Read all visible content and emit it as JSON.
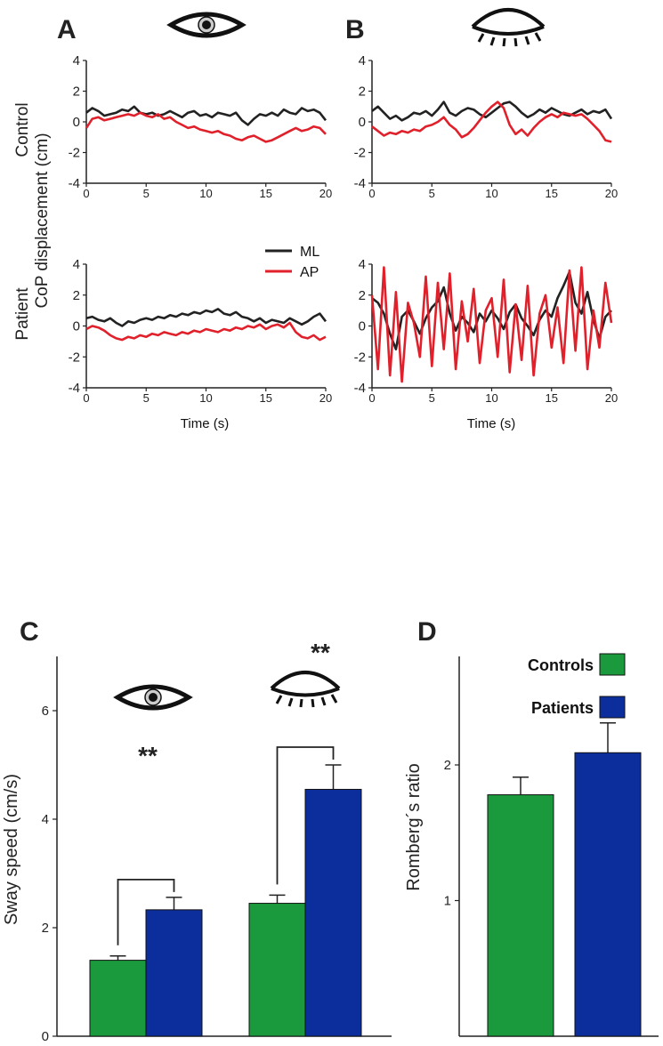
{
  "panels": {
    "a": "A",
    "b": "B",
    "c": "C",
    "d": "D"
  },
  "icons": {
    "open_eye": "eye-open-icon",
    "closed_eye": "eye-closed-icon"
  },
  "row_labels": {
    "control": "Control",
    "patient": "Patient"
  },
  "colors": {
    "ml": "#222222",
    "ap": "#e0212b",
    "controls": "#1a9a3c",
    "patients": "#0c2d9c"
  },
  "chart_data": [
    {
      "id": "A-control",
      "type": "line",
      "panel": "A",
      "condition": "eyes open",
      "group": "Control",
      "xlabel": "",
      "ylabel": "CoP displacement (cm)",
      "xlim": [
        0,
        20
      ],
      "ylim": [
        -4,
        4
      ],
      "xticks": [
        "0",
        "5",
        "10",
        "15",
        "20"
      ],
      "yticks": [
        "4",
        "2",
        "0",
        "-2",
        "-4"
      ],
      "series": [
        {
          "name": "ML",
          "x": [
            0,
            0.5,
            1,
            1.5,
            2,
            2.5,
            3,
            3.5,
            4,
            4.5,
            5,
            5.5,
            6,
            6.5,
            7,
            7.5,
            8,
            8.5,
            9,
            9.5,
            10,
            10.5,
            11,
            11.5,
            12,
            12.5,
            13,
            13.5,
            14,
            14.5,
            15,
            15.5,
            16,
            16.5,
            17,
            17.5,
            18,
            18.5,
            19,
            19.5,
            20
          ],
          "y": [
            0.6,
            0.9,
            0.7,
            0.4,
            0.5,
            0.6,
            0.8,
            0.7,
            1.0,
            0.6,
            0.5,
            0.6,
            0.4,
            0.5,
            0.7,
            0.5,
            0.3,
            0.6,
            0.7,
            0.4,
            0.5,
            0.3,
            0.6,
            0.5,
            0.4,
            0.6,
            0.1,
            -0.2,
            0.2,
            0.5,
            0.4,
            0.6,
            0.4,
            0.8,
            0.6,
            0.5,
            0.9,
            0.7,
            0.8,
            0.6,
            0.1
          ]
        },
        {
          "name": "AP",
          "x": [
            0,
            0.5,
            1,
            1.5,
            2,
            2.5,
            3,
            3.5,
            4,
            4.5,
            5,
            5.5,
            6,
            6.5,
            7,
            7.5,
            8,
            8.5,
            9,
            9.5,
            10,
            10.5,
            11,
            11.5,
            12,
            12.5,
            13,
            13.5,
            14,
            14.5,
            15,
            15.5,
            16,
            16.5,
            17,
            17.5,
            18,
            18.5,
            19,
            19.5,
            20
          ],
          "y": [
            -0.4,
            0.2,
            0.3,
            0.1,
            0.2,
            0.3,
            0.4,
            0.5,
            0.4,
            0.6,
            0.4,
            0.3,
            0.5,
            0.2,
            0.3,
            0.0,
            -0.2,
            -0.4,
            -0.3,
            -0.5,
            -0.6,
            -0.7,
            -0.6,
            -0.8,
            -0.9,
            -1.1,
            -1.2,
            -1.0,
            -0.9,
            -1.1,
            -1.3,
            -1.2,
            -1.0,
            -0.8,
            -0.6,
            -0.4,
            -0.6,
            -0.5,
            -0.3,
            -0.4,
            -0.8
          ]
        }
      ]
    },
    {
      "id": "B-control",
      "type": "line",
      "panel": "B",
      "condition": "eyes closed",
      "group": "Control",
      "xlim": [
        0,
        20
      ],
      "ylim": [
        -4,
        4
      ],
      "xticks": [
        "0",
        "5",
        "10",
        "15",
        "20"
      ],
      "yticks": [
        "4",
        "2",
        "0",
        "-2",
        "-4"
      ],
      "series": [
        {
          "name": "ML",
          "x": [
            0,
            0.5,
            1,
            1.5,
            2,
            2.5,
            3,
            3.5,
            4,
            4.5,
            5,
            5.5,
            6,
            6.5,
            7,
            7.5,
            8,
            8.5,
            9,
            9.5,
            10,
            10.5,
            11,
            11.5,
            12,
            12.5,
            13,
            13.5,
            14,
            14.5,
            15,
            15.5,
            16,
            16.5,
            17,
            17.5,
            18,
            18.5,
            19,
            19.5,
            20
          ],
          "y": [
            0.7,
            1.0,
            0.6,
            0.2,
            0.4,
            0.1,
            0.3,
            0.6,
            0.5,
            0.7,
            0.4,
            0.8,
            1.3,
            0.6,
            0.4,
            0.7,
            0.9,
            0.8,
            0.5,
            0.3,
            0.6,
            0.9,
            1.2,
            1.3,
            1.0,
            0.6,
            0.3,
            0.5,
            0.8,
            0.6,
            0.9,
            0.7,
            0.5,
            0.4,
            0.6,
            0.8,
            0.5,
            0.7,
            0.6,
            0.8,
            0.2
          ]
        },
        {
          "name": "AP",
          "x": [
            0,
            0.5,
            1,
            1.5,
            2,
            2.5,
            3,
            3.5,
            4,
            4.5,
            5,
            5.5,
            6,
            6.5,
            7,
            7.5,
            8,
            8.5,
            9,
            9.5,
            10,
            10.5,
            11,
            11.5,
            12,
            12.5,
            13,
            13.5,
            14,
            14.5,
            15,
            15.5,
            16,
            16.5,
            17,
            17.5,
            18,
            18.5,
            19,
            19.5,
            20
          ],
          "y": [
            -0.3,
            -0.6,
            -0.9,
            -0.7,
            -0.8,
            -0.6,
            -0.7,
            -0.5,
            -0.6,
            -0.3,
            -0.2,
            0.0,
            0.3,
            -0.2,
            -0.5,
            -1.0,
            -0.8,
            -0.4,
            0.1,
            0.6,
            1.0,
            1.3,
            0.9,
            -0.2,
            -0.8,
            -0.5,
            -0.9,
            -0.4,
            0.0,
            0.3,
            0.5,
            0.3,
            0.6,
            0.5,
            0.4,
            0.5,
            0.2,
            -0.2,
            -0.6,
            -1.2,
            -1.3
          ]
        }
      ]
    },
    {
      "id": "A-patient",
      "type": "line",
      "panel": "A",
      "condition": "eyes open",
      "group": "Patient",
      "xlabel": "Time (s)",
      "xlim": [
        0,
        20
      ],
      "ylim": [
        -4,
        4
      ],
      "xticks": [
        "0",
        "5",
        "10",
        "15",
        "20"
      ],
      "yticks": [
        "4",
        "2",
        "0",
        "-2",
        "-4"
      ],
      "legend": [
        "ML",
        "AP"
      ],
      "series": [
        {
          "name": "ML",
          "x": [
            0,
            0.5,
            1,
            1.5,
            2,
            2.5,
            3,
            3.5,
            4,
            4.5,
            5,
            5.5,
            6,
            6.5,
            7,
            7.5,
            8,
            8.5,
            9,
            9.5,
            10,
            10.5,
            11,
            11.5,
            12,
            12.5,
            13,
            13.5,
            14,
            14.5,
            15,
            15.5,
            16,
            16.5,
            17,
            17.5,
            18,
            18.5,
            19,
            19.5,
            20
          ],
          "y": [
            0.5,
            0.6,
            0.4,
            0.3,
            0.5,
            0.2,
            0.0,
            0.3,
            0.2,
            0.4,
            0.5,
            0.4,
            0.6,
            0.5,
            0.7,
            0.6,
            0.8,
            0.7,
            0.9,
            0.8,
            1.0,
            0.9,
            1.1,
            0.8,
            0.7,
            0.9,
            0.6,
            0.5,
            0.3,
            0.5,
            0.2,
            0.4,
            0.3,
            0.2,
            0.5,
            0.3,
            0.1,
            0.3,
            0.6,
            0.8,
            0.3
          ]
        },
        {
          "name": "AP",
          "x": [
            0,
            0.5,
            1,
            1.5,
            2,
            2.5,
            3,
            3.5,
            4,
            4.5,
            5,
            5.5,
            6,
            6.5,
            7,
            7.5,
            8,
            8.5,
            9,
            9.5,
            10,
            10.5,
            11,
            11.5,
            12,
            12.5,
            13,
            13.5,
            14,
            14.5,
            15,
            15.5,
            16,
            16.5,
            17,
            17.5,
            18,
            18.5,
            19,
            19.5,
            20
          ],
          "y": [
            -0.2,
            0.0,
            -0.1,
            -0.3,
            -0.6,
            -0.8,
            -0.9,
            -0.7,
            -0.8,
            -0.6,
            -0.7,
            -0.5,
            -0.6,
            -0.4,
            -0.5,
            -0.6,
            -0.4,
            -0.5,
            -0.3,
            -0.4,
            -0.2,
            -0.3,
            -0.4,
            -0.2,
            -0.3,
            -0.1,
            -0.2,
            0.0,
            -0.1,
            0.1,
            -0.2,
            0.0,
            0.1,
            -0.1,
            0.2,
            -0.4,
            -0.7,
            -0.8,
            -0.6,
            -0.9,
            -0.7
          ]
        }
      ]
    },
    {
      "id": "B-patient",
      "type": "line",
      "panel": "B",
      "condition": "eyes closed",
      "group": "Patient",
      "xlabel": "Time (s)",
      "xlim": [
        0,
        20
      ],
      "ylim": [
        -4,
        4
      ],
      "xticks": [
        "0",
        "5",
        "10",
        "15",
        "20"
      ],
      "yticks": [
        "4",
        "2",
        "0",
        "-2",
        "-4"
      ],
      "series": [
        {
          "name": "ML",
          "x": [
            0,
            0.5,
            1,
            1.5,
            2,
            2.5,
            3,
            3.5,
            4,
            4.5,
            5,
            5.5,
            6,
            6.5,
            7,
            7.5,
            8,
            8.5,
            9,
            9.5,
            10,
            10.5,
            11,
            11.5,
            12,
            12.5,
            13,
            13.5,
            14,
            14.5,
            15,
            15.5,
            16,
            16.5,
            17,
            17.5,
            18,
            18.5,
            19,
            19.5,
            20
          ],
          "y": [
            1.8,
            1.5,
            0.8,
            -0.5,
            -1.5,
            0.6,
            1.0,
            0.3,
            -0.5,
            0.5,
            1.2,
            1.6,
            2.5,
            0.8,
            -0.3,
            0.6,
            0.2,
            -0.4,
            0.8,
            0.3,
            1.0,
            0.5,
            -0.2,
            0.9,
            1.4,
            0.5,
            0.0,
            -0.6,
            0.4,
            1.0,
            0.6,
            1.8,
            2.6,
            3.5,
            1.5,
            0.8,
            2.2,
            0.4,
            -0.8,
            0.6,
            1.0
          ]
        },
        {
          "name": "AP",
          "x": [
            0,
            0.5,
            1,
            1.5,
            2,
            2.5,
            3,
            3.5,
            4,
            4.5,
            5,
            5.5,
            6,
            6.5,
            7,
            7.5,
            8,
            8.5,
            9,
            9.5,
            10,
            10.5,
            11,
            11.5,
            12,
            12.5,
            13,
            13.5,
            14,
            14.5,
            15,
            15.5,
            16,
            16.5,
            17,
            17.5,
            18,
            18.5,
            19,
            19.5,
            20
          ],
          "y": [
            2.0,
            -2.8,
            3.8,
            -3.2,
            2.2,
            -3.6,
            1.5,
            0.2,
            -2.0,
            3.2,
            -2.6,
            2.8,
            -1.5,
            3.4,
            -2.8,
            1.6,
            -1.0,
            2.4,
            -2.4,
            1.0,
            1.8,
            -2.0,
            3.0,
            -3.0,
            1.4,
            -2.2,
            2.6,
            -3.2,
            0.8,
            2.0,
            -1.4,
            1.2,
            -2.4,
            3.6,
            -1.6,
            3.8,
            -2.8,
            1.0,
            -1.4,
            2.8,
            0.2
          ]
        }
      ]
    },
    {
      "id": "C",
      "type": "bar",
      "panel": "C",
      "ylabel": "Sway speed (cm/s)",
      "ylim": [
        0,
        7
      ],
      "yticks": [
        "0",
        "2",
        "4",
        "6"
      ],
      "categories": [
        "eyes open",
        "eyes closed"
      ],
      "series": [
        {
          "name": "Controls",
          "values": [
            1.4,
            2.45
          ],
          "errors": [
            0.08,
            0.15
          ]
        },
        {
          "name": "Patients",
          "values": [
            2.33,
            4.55
          ],
          "errors": [
            0.23,
            0.45
          ]
        }
      ],
      "annotations": [
        "**",
        "**"
      ]
    },
    {
      "id": "D",
      "type": "bar",
      "panel": "D",
      "ylabel": "Romberg´s ratio",
      "ylim": [
        0,
        2.8
      ],
      "yticks": [
        "1",
        "2"
      ],
      "legend": [
        "Controls",
        "Patients"
      ],
      "series": [
        {
          "name": "Controls",
          "values": [
            1.78
          ],
          "errors": [
            0.13
          ]
        },
        {
          "name": "Patients",
          "values": [
            2.09
          ],
          "errors": [
            0.22
          ]
        }
      ]
    }
  ]
}
